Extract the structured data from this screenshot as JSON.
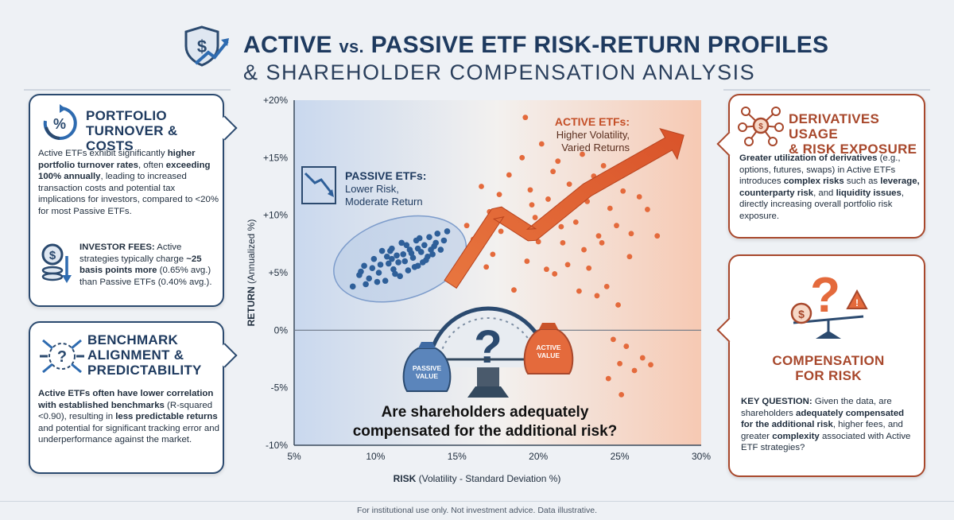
{
  "header": {
    "title_active": "ACTIVE",
    "title_vs": "vs.",
    "title_rest": "PASSIVE ETF RISK-RETURN PROFILES",
    "subtitle": "& SHAREHOLDER COMPENSATION ANALYSIS"
  },
  "left_cards": {
    "turnover": {
      "title_line1": "PORTFOLIO",
      "title_line2": "TURNOVER & COSTS",
      "p1_a": "Active ETFs exhibit significantly ",
      "p1_b": "higher portfolio turnover rates",
      "p1_c": ", often ",
      "p1_d": "exceeding 100% annually",
      "p1_e": ", leading to increased transaction costs and potential tax implications for investors, compared to <20% for most Passive ETFs.",
      "fees_a": "INVESTOR FEES:",
      "fees_b": " Active strategies typically charge ",
      "fees_c": "~25 basis points more",
      "fees_d": " (0.65% avg.) than Passive ETFs (0.40% avg.)."
    },
    "benchmark": {
      "title_line1": "BENCHMARK",
      "title_line2": "ALIGNMENT &",
      "title_line3": "PREDICTABILITY",
      "p_a": "Active ETFs often have lower correlation with established benchmarks",
      "p_b": " (R-squared <0.90), resulting in ",
      "p_c": "less predictable returns",
      "p_d": " and potential for significant tracking error and underperformance against the market."
    }
  },
  "right_cards": {
    "derivatives": {
      "title_line1": "DERIVATIVES USAGE",
      "title_line2": "& RISK EXPOSURE",
      "p_a": "Greater utilization of derivatives",
      "p_b": " (e.g., options, futures, swaps) in Active ETFs introduces ",
      "p_c": "complex risks",
      "p_d": " such as ",
      "p_e": "leverage, counterparty risk",
      "p_f": ", and ",
      "p_g": "liquidity issues",
      "p_h": ", directly increasing overall portfolio risk exposure."
    },
    "compensation": {
      "title_line1": "COMPENSATION",
      "title_line2": "FOR RISK",
      "p_a": "KEY QUESTION:",
      "p_b": " Given the data, are shareholders ",
      "p_c": "adequately compensated for the additional risk",
      "p_d": ", higher fees, and greater ",
      "p_e": "complexity",
      "p_f": " associated with Active ETF strategies?"
    }
  },
  "chart_data": {
    "type": "scatter",
    "xlabel_bold": "RISK",
    "xlabel_rest": " (Volatility - Standard Deviation %)",
    "ylabel_bold": "RETURN",
    "ylabel_rest": " (Annualized %)",
    "xlim": [
      5,
      30
    ],
    "ylim": [
      -10,
      20
    ],
    "x_ticks": [
      "5%",
      "10%",
      "15%",
      "20%",
      "25%",
      "30%"
    ],
    "y_ticks": [
      "+20%",
      "+15%",
      "+10%",
      "+5%",
      "0%",
      "-5%",
      "-10%"
    ],
    "passive_label_title": "PASSIVE ETFs:",
    "passive_label_l2": "Lower Risk,",
    "passive_label_l3": "Moderate Return",
    "active_label_title": "ACTIVE ETFs:",
    "active_label_l2": "Higher Volatility,",
    "active_label_l3": "Varied Returns",
    "scale_left": "PASSIVE",
    "scale_left2": "VALUE",
    "scale_right": "ACTIVE",
    "scale_right2": "VALUE",
    "question_l1": "Are shareholders adequately",
    "question_l2": "compensated for the additional risk?",
    "series": [
      {
        "name": "PASSIVE ETFs",
        "color": "#2e5f99",
        "points": [
          [
            8.6,
            3.8
          ],
          [
            9.0,
            4.8
          ],
          [
            9.3,
            5.6
          ],
          [
            9.6,
            4.5
          ],
          [
            9.9,
            6.2
          ],
          [
            10.2,
            5.0
          ],
          [
            10.4,
            6.9
          ],
          [
            10.6,
            4.3
          ],
          [
            10.8,
            5.8
          ],
          [
            11.0,
            7.1
          ],
          [
            11.1,
            5.3
          ],
          [
            11.3,
            6.5
          ],
          [
            11.5,
            4.7
          ],
          [
            11.6,
            7.6
          ],
          [
            11.8,
            6.0
          ],
          [
            12.0,
            5.2
          ],
          [
            12.1,
            7.0
          ],
          [
            12.3,
            6.3
          ],
          [
            12.5,
            7.8
          ],
          [
            12.6,
            5.6
          ],
          [
            12.8,
            6.8
          ],
          [
            13.0,
            7.4
          ],
          [
            13.1,
            6.1
          ],
          [
            13.3,
            8.1
          ],
          [
            13.5,
            6.6
          ],
          [
            13.6,
            7.3
          ],
          [
            13.8,
            8.4
          ],
          [
            14.0,
            7.0
          ],
          [
            14.2,
            7.8
          ],
          [
            9.8,
            5.4
          ],
          [
            10.1,
            4.2
          ],
          [
            10.7,
            6.4
          ],
          [
            11.4,
            5.9
          ],
          [
            12.2,
            6.7
          ],
          [
            12.9,
            5.9
          ],
          [
            13.4,
            7.0
          ],
          [
            11.9,
            7.4
          ],
          [
            10.9,
            6.9
          ],
          [
            12.7,
            8.0
          ],
          [
            9.4,
            4.0
          ],
          [
            11.2,
            4.9
          ],
          [
            12.4,
            5.5
          ],
          [
            13.2,
            6.4
          ],
          [
            14.4,
            8.6
          ],
          [
            10.3,
            5.7
          ],
          [
            11.7,
            6.6
          ],
          [
            9.1,
            5.1
          ],
          [
            12.6,
            7.1
          ],
          [
            13.7,
            7.6
          ],
          [
            11.0,
            6.2
          ]
        ]
      },
      {
        "name": "ACTIVE ETFs",
        "color": "#e46a3c",
        "points": [
          [
            16.5,
            12.5
          ],
          [
            17.0,
            10.3
          ],
          [
            17.6,
            11.8
          ],
          [
            18.2,
            13.5
          ],
          [
            18.6,
            8.9
          ],
          [
            19.0,
            15.0
          ],
          [
            19.2,
            18.5
          ],
          [
            19.5,
            12.2
          ],
          [
            19.8,
            9.8
          ],
          [
            20.2,
            16.2
          ],
          [
            20.6,
            11.4
          ],
          [
            20.9,
            13.8
          ],
          [
            21.2,
            14.7
          ],
          [
            21.5,
            7.6
          ],
          [
            21.9,
            12.7
          ],
          [
            22.3,
            9.4
          ],
          [
            22.7,
            15.3
          ],
          [
            23.0,
            11.2
          ],
          [
            23.4,
            13.4
          ],
          [
            23.7,
            8.2
          ],
          [
            24.0,
            14.3
          ],
          [
            24.4,
            10.6
          ],
          [
            24.8,
            9.1
          ],
          [
            25.2,
            12.1
          ],
          [
            25.7,
            8.4
          ],
          [
            26.2,
            11.6
          ],
          [
            26.7,
            10.5
          ],
          [
            27.3,
            8.2
          ],
          [
            18.0,
            9.7
          ],
          [
            19.3,
            6.0
          ],
          [
            20.0,
            7.7
          ],
          [
            20.5,
            5.3
          ],
          [
            21.0,
            4.9
          ],
          [
            21.8,
            5.7
          ],
          [
            22.5,
            3.4
          ],
          [
            23.1,
            5.4
          ],
          [
            23.6,
            3.0
          ],
          [
            24.2,
            3.8
          ],
          [
            24.9,
            2.2
          ],
          [
            25.6,
            6.4
          ],
          [
            16.0,
            7.9
          ],
          [
            17.2,
            6.6
          ],
          [
            15.0,
            4.2
          ],
          [
            16.8,
            5.5
          ],
          [
            18.5,
            3.5
          ],
          [
            24.6,
            -0.8
          ],
          [
            25.0,
            -2.9
          ],
          [
            25.4,
            -1.4
          ],
          [
            25.9,
            -3.5
          ],
          [
            26.4,
            -2.4
          ],
          [
            24.3,
            -4.2
          ],
          [
            25.1,
            -5.6
          ],
          [
            26.9,
            -3.0
          ],
          [
            22.8,
            7.0
          ],
          [
            23.9,
            7.6
          ],
          [
            21.4,
            9.0
          ],
          [
            19.6,
            10.9
          ],
          [
            17.7,
            8.6
          ],
          [
            15.6,
            9.1
          ]
        ]
      }
    ],
    "grid": false,
    "zero_line": true
  },
  "footer": {
    "text": "For institutional use only. Not investment advice. Data illustrative."
  },
  "colors": {
    "navy": "#1e3a5f",
    "rust": "#a8482c",
    "passive_blue": "#2e5f99",
    "active_orange": "#e46a3c"
  },
  "icons": {
    "logo": "shield-dollar-trend-icon",
    "turnover": "cycle-percent-icon",
    "fees": "dollar-coins-down-icon",
    "benchmark": "target-arrows-icon",
    "derivatives": "network-nodes-icon",
    "compensation": "scale-question-icon"
  }
}
